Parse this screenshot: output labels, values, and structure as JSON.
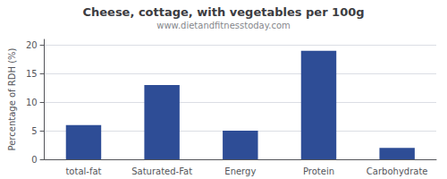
{
  "chart_data": {
    "type": "bar",
    "title": "Cheese, cottage, with vegetables per 100g",
    "subtitle": "www.dietandfitnesstoday.com",
    "categories": [
      "total-fat",
      "Saturated-Fat",
      "Energy",
      "Protein",
      "Carbohydrate"
    ],
    "values": [
      6,
      13,
      5,
      19,
      2
    ],
    "color": "#2e4d96",
    "ylabel": "Percentage of RDH (%)",
    "ylim": [
      0,
      21
    ],
    "yticks": [
      0,
      5,
      10,
      15,
      20
    ],
    "grid": true
  }
}
